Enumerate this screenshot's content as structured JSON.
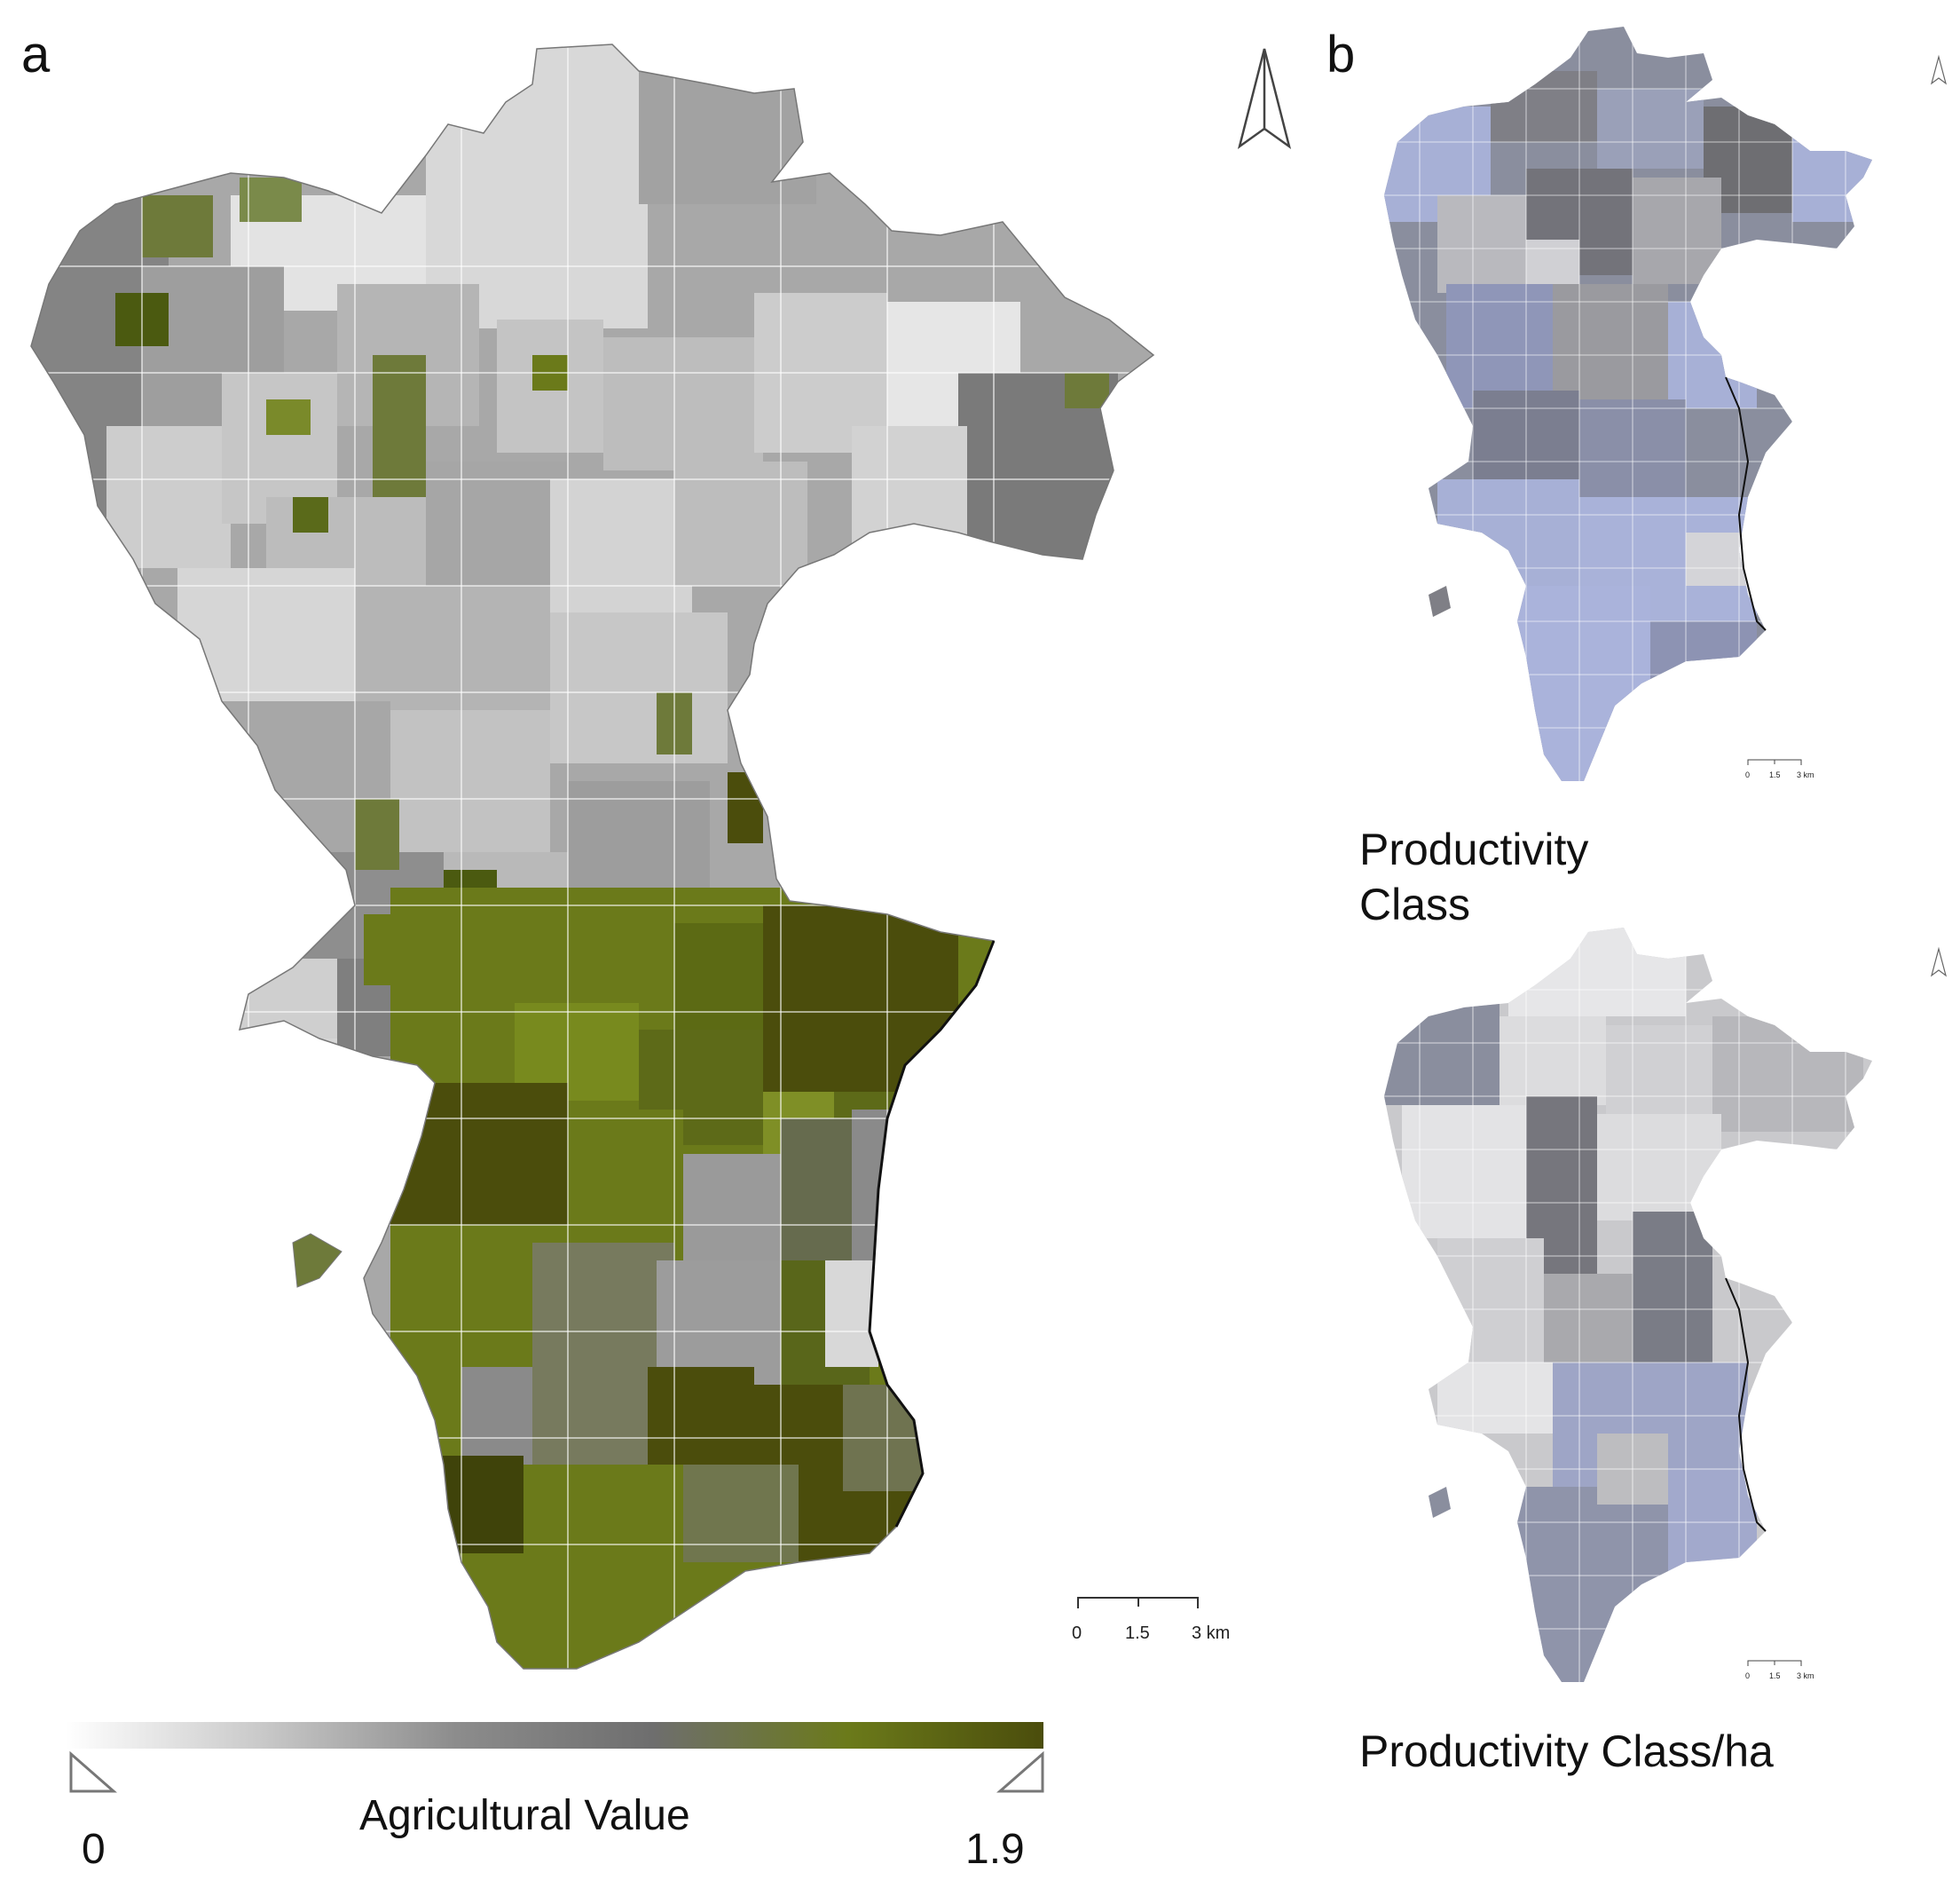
{
  "panels": {
    "a": {
      "letter": "a",
      "legend": {
        "title": "Agricultural Value",
        "min_label": "0",
        "max_label": "1.9",
        "min": 0,
        "max": 1.9,
        "gradient_colors": [
          "#ffffff",
          "#c9c9c9",
          "#8c8c8c",
          "#6e6e6e",
          "#6b7a1a",
          "#4b4d0c"
        ]
      },
      "scale_bar": {
        "tick_0": "0",
        "tick_mid": "1.5",
        "tick_end": "3 km"
      },
      "north_arrow_icon": "north-arrow-icon"
    },
    "b": {
      "letter": "b",
      "maps": [
        {
          "caption": "Productivity\nClass",
          "caption_line1": "Productivity",
          "caption_line2": "Class"
        },
        {
          "caption": "Productivity Class/ha"
        }
      ],
      "scale_bar": {
        "tick_0": "0",
        "tick_mid": "1.5",
        "tick_end": "3 km"
      },
      "north_arrow_icon": "north-arrow-icon"
    }
  },
  "colors": {
    "green_dark": "#4b4d0c",
    "green_mid": "#6b7a1a",
    "green_olive": "#7a8a2a",
    "gray_dark": "#6e6e6e",
    "gray_mid": "#9a9a9a",
    "gray_light": "#cfcfcf",
    "lavender": "#a7b0d6",
    "lavender_gray": "#8e93a8"
  }
}
